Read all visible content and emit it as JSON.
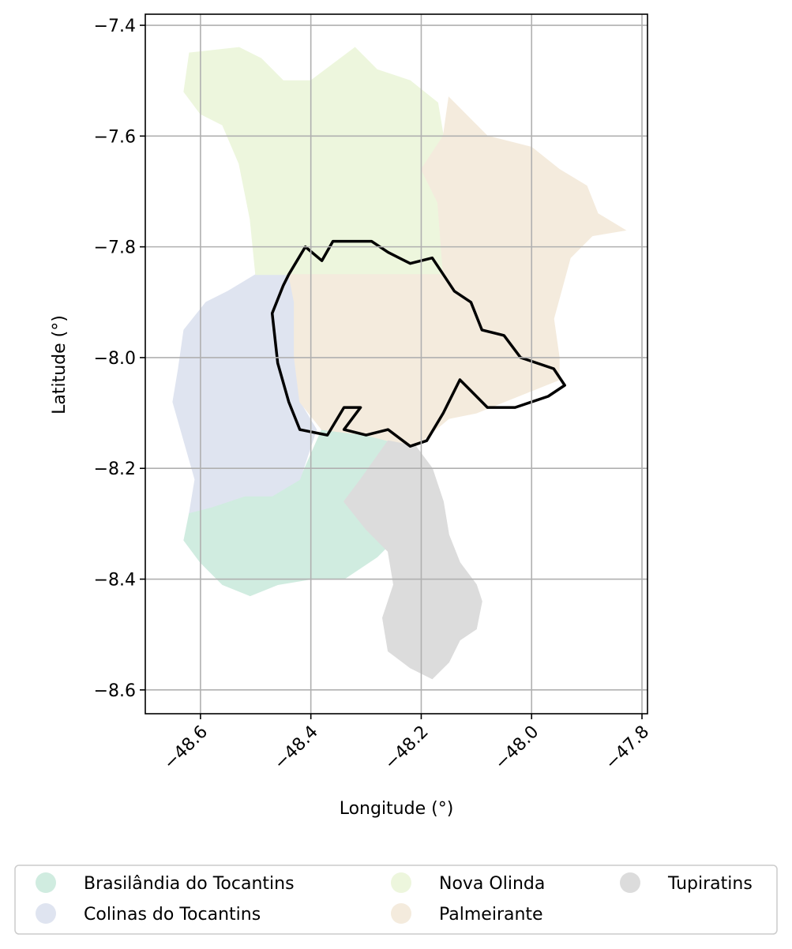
{
  "chart_data": {
    "type": "map",
    "xlabel": "Longitude (°)",
    "ylabel": "Latitude (°)",
    "xlim": [
      -48.7,
      -47.79
    ],
    "ylim": [
      -8.643,
      -7.38
    ],
    "x_ticks": [
      -48.6,
      -48.4,
      -48.2,
      -48.0,
      -47.8
    ],
    "x_tick_labels": [
      "−48.6",
      "−48.4",
      "−48.2",
      "−48.0",
      "−47.8"
    ],
    "y_ticks": [
      -7.4,
      -7.6,
      -7.8,
      -8.0,
      -8.2,
      -8.4,
      -8.6
    ],
    "y_tick_labels": [
      "−7.4",
      "−7.6",
      "−7.8",
      "−8.0",
      "−8.2",
      "−8.4",
      "−8.6"
    ],
    "grid": true,
    "legend_position": "bottom",
    "regions": [
      {
        "name": "Brasilândia do Tocantins",
        "color": "#d0ece0",
        "outline": [
          [
            -48.62,
            -8.28
          ],
          [
            -48.58,
            -8.27
          ],
          [
            -48.52,
            -8.25
          ],
          [
            -48.47,
            -8.25
          ],
          [
            -48.42,
            -8.22
          ],
          [
            -48.38,
            -8.13
          ],
          [
            -48.3,
            -8.14
          ],
          [
            -48.26,
            -8.15
          ],
          [
            -48.31,
            -8.22
          ],
          [
            -48.34,
            -8.26
          ],
          [
            -48.3,
            -8.31
          ],
          [
            -48.25,
            -8.33
          ],
          [
            -48.28,
            -8.36
          ],
          [
            -48.34,
            -8.4
          ],
          [
            -48.4,
            -8.4
          ],
          [
            -48.46,
            -8.41
          ],
          [
            -48.51,
            -8.43
          ],
          [
            -48.56,
            -8.41
          ],
          [
            -48.6,
            -8.37
          ],
          [
            -48.63,
            -8.33
          ]
        ]
      },
      {
        "name": "Colinas do Tocantins",
        "color": "#dfe4f0",
        "outline": [
          [
            -48.5,
            -7.85
          ],
          [
            -48.44,
            -7.85
          ],
          [
            -48.43,
            -7.9
          ],
          [
            -48.43,
            -8.0
          ],
          [
            -48.42,
            -8.08
          ],
          [
            -48.39,
            -8.13
          ],
          [
            -48.42,
            -8.22
          ],
          [
            -48.47,
            -8.25
          ],
          [
            -48.52,
            -8.25
          ],
          [
            -48.58,
            -8.27
          ],
          [
            -48.62,
            -8.28
          ],
          [
            -48.61,
            -8.22
          ],
          [
            -48.63,
            -8.15
          ],
          [
            -48.65,
            -8.08
          ],
          [
            -48.64,
            -8.02
          ],
          [
            -48.63,
            -7.95
          ],
          [
            -48.59,
            -7.9
          ],
          [
            -48.55,
            -7.88
          ]
        ]
      },
      {
        "name": "Nova Olinda",
        "color": "#edf6dd",
        "outline": [
          [
            -48.63,
            -7.52
          ],
          [
            -48.62,
            -7.45
          ],
          [
            -48.53,
            -7.44
          ],
          [
            -48.49,
            -7.46
          ],
          [
            -48.45,
            -7.5
          ],
          [
            -48.4,
            -7.5
          ],
          [
            -48.32,
            -7.44
          ],
          [
            -48.28,
            -7.48
          ],
          [
            -48.22,
            -7.5
          ],
          [
            -48.17,
            -7.54
          ],
          [
            -48.16,
            -7.6
          ],
          [
            -48.2,
            -7.66
          ],
          [
            -48.17,
            -7.72
          ],
          [
            -48.16,
            -7.85
          ],
          [
            -48.44,
            -7.85
          ],
          [
            -48.5,
            -7.85
          ],
          [
            -48.51,
            -7.75
          ],
          [
            -48.53,
            -7.65
          ],
          [
            -48.56,
            -7.58
          ],
          [
            -48.6,
            -7.56
          ]
        ]
      },
      {
        "name": "Palmeirante",
        "color": "#f4ebdd",
        "outline": [
          [
            -48.15,
            -7.53
          ],
          [
            -48.08,
            -7.6
          ],
          [
            -48.0,
            -7.62
          ],
          [
            -47.95,
            -7.66
          ],
          [
            -47.9,
            -7.69
          ],
          [
            -47.88,
            -7.74
          ],
          [
            -47.83,
            -7.77
          ],
          [
            -47.89,
            -7.78
          ],
          [
            -47.93,
            -7.82
          ],
          [
            -47.96,
            -7.93
          ],
          [
            -47.95,
            -8.0
          ],
          [
            -47.95,
            -8.04
          ],
          [
            -48.0,
            -8.06
          ],
          [
            -48.1,
            -8.1
          ],
          [
            -48.15,
            -8.11
          ],
          [
            -48.21,
            -8.16
          ],
          [
            -48.26,
            -8.15
          ],
          [
            -48.3,
            -8.14
          ],
          [
            -48.38,
            -8.13
          ],
          [
            -48.42,
            -8.08
          ],
          [
            -48.43,
            -8.0
          ],
          [
            -48.43,
            -7.9
          ],
          [
            -48.44,
            -7.85
          ],
          [
            -48.16,
            -7.85
          ],
          [
            -48.17,
            -7.72
          ],
          [
            -48.2,
            -7.66
          ],
          [
            -48.16,
            -7.6
          ]
        ]
      },
      {
        "name": "Tupiratins",
        "color": "#dcdcdc",
        "outline": [
          [
            -48.26,
            -8.15
          ],
          [
            -48.21,
            -8.16
          ],
          [
            -48.18,
            -8.2
          ],
          [
            -48.16,
            -8.26
          ],
          [
            -48.15,
            -8.32
          ],
          [
            -48.13,
            -8.37
          ],
          [
            -48.1,
            -8.41
          ],
          [
            -48.09,
            -8.44
          ],
          [
            -48.1,
            -8.49
          ],
          [
            -48.13,
            -8.51
          ],
          [
            -48.15,
            -8.55
          ],
          [
            -48.18,
            -8.58
          ],
          [
            -48.22,
            -8.56
          ],
          [
            -48.26,
            -8.53
          ],
          [
            -48.27,
            -8.47
          ],
          [
            -48.25,
            -8.41
          ],
          [
            -48.26,
            -8.35
          ],
          [
            -48.3,
            -8.31
          ],
          [
            -48.34,
            -8.26
          ],
          [
            -48.31,
            -8.22
          ]
        ]
      }
    ],
    "highlight_outline": {
      "color": "#000000",
      "points": [
        [
          -48.44,
          -7.85
        ],
        [
          -48.41,
          -7.8
        ],
        [
          -48.38,
          -7.825
        ],
        [
          -48.36,
          -7.79
        ],
        [
          -48.29,
          -7.79
        ],
        [
          -48.26,
          -7.81
        ],
        [
          -48.22,
          -7.83
        ],
        [
          -48.18,
          -7.82
        ],
        [
          -48.16,
          -7.85
        ],
        [
          -48.14,
          -7.88
        ],
        [
          -48.11,
          -7.9
        ],
        [
          -48.09,
          -7.95
        ],
        [
          -48.05,
          -7.96
        ],
        [
          -48.02,
          -8.0
        ],
        [
          -47.96,
          -8.02
        ],
        [
          -47.94,
          -8.05
        ],
        [
          -47.97,
          -8.07
        ],
        [
          -48.03,
          -8.09
        ],
        [
          -48.08,
          -8.09
        ],
        [
          -48.11,
          -8.06
        ],
        [
          -48.13,
          -8.04
        ],
        [
          -48.16,
          -8.1
        ],
        [
          -48.19,
          -8.15
        ],
        [
          -48.22,
          -8.16
        ],
        [
          -48.26,
          -8.13
        ],
        [
          -48.3,
          -8.14
        ],
        [
          -48.34,
          -8.13
        ],
        [
          -48.31,
          -8.09
        ],
        [
          -48.34,
          -8.09
        ],
        [
          -48.37,
          -8.14
        ],
        [
          -48.42,
          -8.13
        ],
        [
          -48.44,
          -8.08
        ],
        [
          -48.46,
          -8.01
        ],
        [
          -48.47,
          -7.92
        ],
        [
          -48.45,
          -7.87
        ]
      ]
    },
    "legend": [
      {
        "label": "Brasilândia do Tocantins",
        "color": "#d0ece0"
      },
      {
        "label": "Nova Olinda",
        "color": "#edf6dd"
      },
      {
        "label": "Tupiratins",
        "color": "#dcdcdc"
      },
      {
        "label": "Colinas do Tocantins",
        "color": "#dfe4f0"
      },
      {
        "label": "Palmeirante",
        "color": "#f4ebdd"
      }
    ]
  }
}
